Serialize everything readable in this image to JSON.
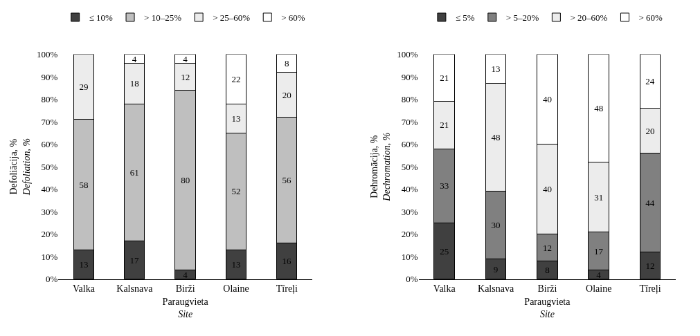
{
  "chart_data": [
    {
      "type": "bar",
      "stacked": true,
      "categories": [
        "Valka",
        "Kalsnava",
        "Birži",
        "Olaine",
        "Tīreļi"
      ],
      "xlabel": "Paraugvieta\nSite",
      "ylabel": "Defoliācija, %\nDefoliation, %",
      "ylim": [
        0,
        100
      ],
      "yticks": [
        {
          "value": 0,
          "label": "0%"
        },
        {
          "value": 10,
          "label": "10%"
        },
        {
          "value": 20,
          "label": "20%"
        },
        {
          "value": 30,
          "label": "30%"
        },
        {
          "value": 40,
          "label": "40%"
        },
        {
          "value": 50,
          "label": "50%"
        },
        {
          "value": 60,
          "label": "60%"
        },
        {
          "value": 70,
          "label": "70%"
        },
        {
          "value": 80,
          "label": "80%"
        },
        {
          "value": 90,
          "label": "90%"
        },
        {
          "value": 100,
          "label": "100%"
        }
      ],
      "legend": "top",
      "series": [
        {
          "name": "≤ 10%",
          "color": "#404040",
          "values": [
            13,
            17,
            4,
            13,
            16
          ],
          "value_labels": [
            "13",
            "17",
            "4",
            "13",
            "16"
          ]
        },
        {
          "name": "> 10–25%",
          "color": "#bfbfbf",
          "values": [
            58,
            61,
            80,
            52,
            56
          ],
          "value_labels": [
            "58",
            "61",
            "80",
            "52",
            "56"
          ]
        },
        {
          "name": "> 25–60%",
          "color": "#ececec",
          "values": [
            29,
            18,
            12,
            13,
            20
          ],
          "value_labels": [
            "29",
            "18",
            "12",
            "13",
            "20"
          ]
        },
        {
          "name": "> 60%",
          "color": "#ffffff",
          "values": [
            null,
            4,
            4,
            22,
            8
          ],
          "value_labels": [
            null,
            "4",
            "4",
            "22",
            "8"
          ]
        }
      ]
    },
    {
      "type": "bar",
      "stacked": true,
      "categories": [
        "Valka",
        "Kalsnava",
        "Birži",
        "Olaine",
        "Tīreļi"
      ],
      "xlabel": "Paraugvieta\nSite",
      "ylabel": "Dehromācija, %\nDechromation, %",
      "ylim": [
        0,
        100
      ],
      "yticks": [
        {
          "value": 0,
          "label": "0%"
        },
        {
          "value": 10,
          "label": "10%"
        },
        {
          "value": 20,
          "label": "20%"
        },
        {
          "value": 30,
          "label": "30%"
        },
        {
          "value": 40,
          "label": "40%"
        },
        {
          "value": 50,
          "label": "50%"
        },
        {
          "value": 60,
          "label": "60%"
        },
        {
          "value": 70,
          "label": "70%"
        },
        {
          "value": 80,
          "label": "80%"
        },
        {
          "value": 90,
          "label": "90%"
        },
        {
          "value": 100,
          "label": "100%"
        }
      ],
      "legend": "top",
      "series": [
        {
          "name": "≤ 5%",
          "color": "#404040",
          "values": [
            25,
            9,
            8,
            4,
            12
          ],
          "value_labels": [
            "25",
            "9",
            "8",
            "4",
            "12"
          ]
        },
        {
          "name": "> 5–20%",
          "color": "#808080",
          "values": [
            33,
            30,
            12,
            17,
            44
          ],
          "value_labels": [
            "33",
            "30",
            "12",
            "17",
            "44"
          ]
        },
        {
          "name": "> 20–60%",
          "color": "#ececec",
          "values": [
            21,
            48,
            40,
            31,
            20
          ],
          "value_labels": [
            "21",
            "48",
            "40",
            "31",
            "20"
          ]
        },
        {
          "name": "> 60%",
          "color": "#ffffff",
          "values": [
            21,
            13,
            40,
            48,
            24
          ],
          "value_labels": [
            "21",
            "13",
            "40",
            "48",
            "24"
          ]
        }
      ]
    }
  ]
}
